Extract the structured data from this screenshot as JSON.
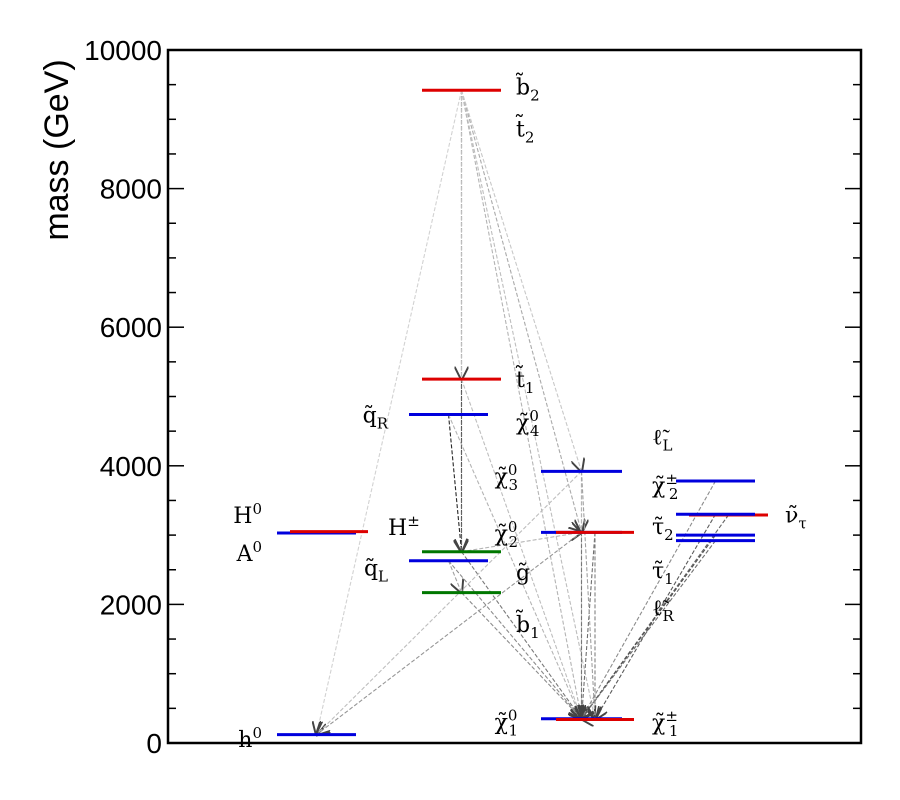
{
  "chart_data": {
    "type": "mass-spectrum",
    "ylabel": "mass (GeV)",
    "ylim": [
      0,
      10000
    ],
    "yticks": [
      {
        "value": 0,
        "label": "0"
      },
      {
        "value": 2000,
        "label": "2000"
      },
      {
        "value": 4000,
        "label": "4000"
      },
      {
        "value": 6000,
        "label": "6000"
      },
      {
        "value": 8000,
        "label": "8000"
      },
      {
        "value": 10000,
        "label": "10000"
      }
    ],
    "yminor_step": 500,
    "colors": {
      "higgs_neutral": "#0000dd",
      "higgs_charged": "#dd0000",
      "squark": "#dd0000",
      "squark_light": "#0000dd",
      "gluino": "#007700",
      "ino": "#0000dd",
      "chargino": "#dd0000"
    },
    "levels": [
      {
        "id": "h0",
        "column": 1,
        "mass": 120,
        "color": "#0000dd"
      },
      {
        "id": "A0",
        "column": 1,
        "mass": 3030,
        "color": "#0000dd"
      },
      {
        "id": "Hpm",
        "column": 1,
        "mass": 3050,
        "color": "#dd0000"
      },
      {
        "id": "b2",
        "column": 2,
        "mass": 9420,
        "color": "#dd0000"
      },
      {
        "id": "t1",
        "column": 2,
        "mass": 5250,
        "color": "#dd0000"
      },
      {
        "id": "qR",
        "column": 2,
        "mass": 4740,
        "color": "#0000dd"
      },
      {
        "id": "gluino",
        "column": 2,
        "mass": 2760,
        "color": "#007700"
      },
      {
        "id": "qL",
        "column": 2,
        "mass": 2630,
        "color": "#0000dd"
      },
      {
        "id": "b1",
        "column": 2,
        "mass": 2170,
        "color": "#007700"
      },
      {
        "id": "chi30",
        "column": 3,
        "mass": 3920,
        "color": "#0000dd"
      },
      {
        "id": "chi20",
        "column": 3,
        "mass": 3040,
        "color": "#0000dd"
      },
      {
        "id": "chi2pm",
        "column": 3,
        "mass": 3040,
        "color": "#dd0000"
      },
      {
        "id": "chi10",
        "column": 3,
        "mass": 350,
        "color": "#0000dd"
      },
      {
        "id": "chi1pm",
        "column": 3,
        "mass": 340,
        "color": "#dd0000"
      },
      {
        "id": "slepL",
        "column": 4,
        "mass": 3780,
        "color": "#0000dd"
      },
      {
        "id": "snutau",
        "column": 4,
        "mass": 3290,
        "color": "#dd0000"
      },
      {
        "id": "tau2",
        "column": 4,
        "mass": 3300,
        "color": "#0000dd"
      },
      {
        "id": "tau1",
        "column": 4,
        "mass": 3000,
        "color": "#0000dd"
      },
      {
        "id": "slepR",
        "column": 4,
        "mass": 2920,
        "color": "#0000dd"
      }
    ],
    "labels": [
      {
        "text": "H",
        "sup": "0",
        "sub": "",
        "tilde": false,
        "mass": 3290,
        "col": "c1l"
      },
      {
        "text": "A",
        "sup": "0",
        "sub": "",
        "tilde": false,
        "mass": 2740,
        "col": "c1l"
      },
      {
        "text": "H",
        "sup": "±",
        "sub": "",
        "tilde": false,
        "mass": 3120,
        "col": "c1r"
      },
      {
        "text": "h",
        "sup": "0",
        "sub": "",
        "tilde": false,
        "mass": 60,
        "col": "c1l"
      },
      {
        "text": "b",
        "sup": "",
        "sub": "2",
        "tilde": true,
        "mass": 9470,
        "col": "c2r"
      },
      {
        "text": "t",
        "sup": "",
        "sub": "2",
        "tilde": true,
        "mass": 8870,
        "col": "c2r"
      },
      {
        "text": "t",
        "sup": "",
        "sub": "1",
        "tilde": true,
        "mass": 5250,
        "col": "c2r"
      },
      {
        "text": "q",
        "sup": "",
        "sub": "R",
        "tilde": true,
        "mass": 4740,
        "col": "c2l"
      },
      {
        "text": "χ",
        "sup": "0",
        "sub": "4",
        "tilde": true,
        "mass": 4630,
        "col": "c2r"
      },
      {
        "text": "q",
        "sup": "",
        "sub": "L",
        "tilde": true,
        "mass": 2530,
        "col": "c2l"
      },
      {
        "text": "g",
        "sup": "",
        "sub": "",
        "tilde": true,
        "mass": 2470,
        "col": "c2r"
      },
      {
        "text": "b",
        "sup": "",
        "sub": "1",
        "tilde": true,
        "mass": 1720,
        "col": "c2r"
      },
      {
        "text": "χ",
        "sup": "0",
        "sub": "3",
        "tilde": true,
        "mass": 3850,
        "col": "c3l"
      },
      {
        "text": "χ",
        "sup": "0",
        "sub": "2",
        "tilde": true,
        "mass": 3030,
        "col": "c3l"
      },
      {
        "text": "χ",
        "sup": "0",
        "sub": "1",
        "tilde": true,
        "mass": 310,
        "col": "c3l"
      },
      {
        "text": "χ",
        "sup": "±",
        "sub": "2",
        "tilde": true,
        "mass": 3720,
        "col": "c3r"
      },
      {
        "text": "χ",
        "sup": "±",
        "sub": "1",
        "tilde": true,
        "mass": 300,
        "col": "c3r"
      },
      {
        "text": "τ",
        "sup": "",
        "sub": "2",
        "tilde": true,
        "mass": 3130,
        "col": "c3r"
      },
      {
        "text": "τ",
        "sup": "",
        "sub": "1",
        "tilde": true,
        "mass": 2500,
        "col": "c3r"
      },
      {
        "text": "ℓ",
        "sup": "",
        "sub": "L",
        "tilde": true,
        "mass": 4420,
        "col": "c3r"
      },
      {
        "text": "ℓ",
        "sup": "",
        "sub": "R",
        "tilde": true,
        "mass": 1960,
        "col": "c3r"
      },
      {
        "text": "ν",
        "sup": "",
        "sub": "τ",
        "tilde": true,
        "mass": 3300,
        "col": "c4r"
      }
    ],
    "decays": [
      {
        "from": "b2",
        "to": "gluino",
        "strength": 0.95
      },
      {
        "from": "b2",
        "to": "chi20",
        "strength": 0.25
      },
      {
        "from": "b2",
        "to": "chi10",
        "strength": 0.2
      },
      {
        "from": "b2",
        "to": "chi1pm",
        "strength": 0.15
      },
      {
        "from": "b2",
        "to": "chi30",
        "strength": 0.1
      },
      {
        "from": "b2",
        "to": "t1",
        "strength": 0.15
      },
      {
        "from": "b2",
        "to": "h0",
        "strength": 0.05
      },
      {
        "from": "qR",
        "to": "gluino",
        "strength": 0.9
      },
      {
        "from": "qR",
        "to": "chi10",
        "strength": 0.2
      },
      {
        "from": "t1",
        "to": "gluino",
        "strength": 0.6
      },
      {
        "from": "t1",
        "to": "chi10",
        "strength": 0.15
      },
      {
        "from": "gluino",
        "to": "chi10",
        "strength": 0.5
      },
      {
        "from": "gluino",
        "to": "chi20",
        "strength": 0.2
      },
      {
        "from": "qL",
        "to": "chi10",
        "strength": 0.4
      },
      {
        "from": "qL",
        "to": "b1",
        "strength": 0.3
      },
      {
        "from": "b1",
        "to": "chi10",
        "strength": 0.4
      },
      {
        "from": "chi20",
        "to": "h0",
        "strength": 0.35
      },
      {
        "from": "chi30",
        "to": "h0",
        "strength": 0.15
      },
      {
        "from": "chi30",
        "to": "chi10",
        "strength": 0.35
      },
      {
        "from": "chi30",
        "to": "chi20",
        "strength": 0.2
      },
      {
        "from": "chi20",
        "to": "chi10",
        "strength": 0.5
      },
      {
        "from": "chi2pm",
        "to": "chi10",
        "strength": 0.55
      },
      {
        "from": "chi2pm",
        "to": "chi1pm",
        "strength": 0.45
      },
      {
        "from": "slepL",
        "to": "chi10",
        "strength": 0.4
      },
      {
        "from": "snutau",
        "to": "chi10",
        "strength": 0.6
      },
      {
        "from": "tau2",
        "to": "chi1pm",
        "strength": 0.65
      },
      {
        "from": "tau1",
        "to": "chi10",
        "strength": 0.7
      },
      {
        "from": "slepR",
        "to": "chi10",
        "strength": 0.55
      },
      {
        "from": "chi30",
        "to": "chi1pm",
        "strength": 0.3
      },
      {
        "from": "chi1pm",
        "to": "chi10",
        "strength": 0.9
      }
    ]
  }
}
